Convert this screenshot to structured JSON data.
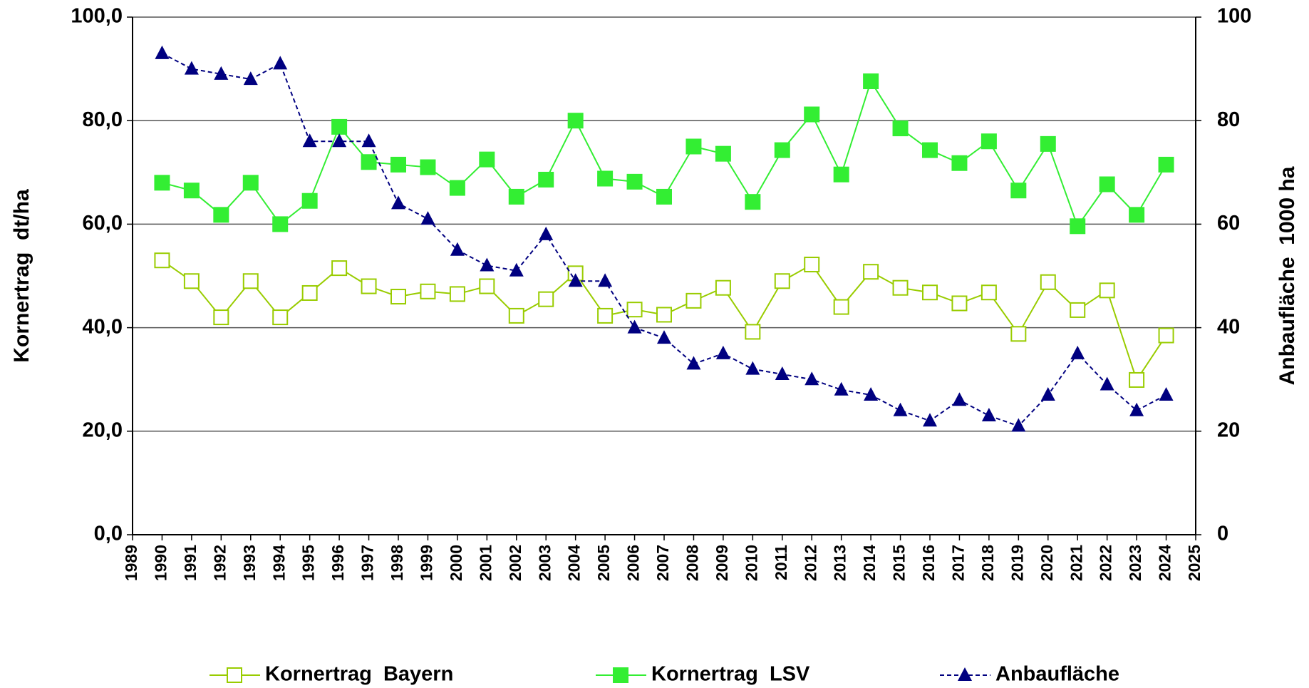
{
  "chart_data": {
    "type": "line",
    "y_label": "Kornertrag  dt/ha",
    "y2_label": "Anbaufläche  1000 ha",
    "x": [
      1990,
      1991,
      1992,
      1993,
      1994,
      1995,
      1996,
      1997,
      1998,
      1999,
      2000,
      2001,
      2002,
      2003,
      2004,
      2005,
      2006,
      2007,
      2008,
      2009,
      2010,
      2011,
      2012,
      2013,
      2014,
      2015,
      2016,
      2017,
      2018,
      2019,
      2020,
      2021,
      2022,
      2023,
      2024
    ],
    "xlim": [
      1989,
      2025
    ],
    "xticks": [
      1989,
      1990,
      1991,
      1992,
      1993,
      1994,
      1995,
      1996,
      1997,
      1998,
      1999,
      2000,
      2001,
      2002,
      2003,
      2004,
      2005,
      2006,
      2007,
      2008,
      2009,
      2010,
      2011,
      2012,
      2013,
      2014,
      2015,
      2016,
      2017,
      2018,
      2019,
      2020,
      2021,
      2022,
      2023,
      2024,
      2025
    ],
    "ylim": [
      0,
      100
    ],
    "yticks": [
      {
        "value": 0,
        "label": "0,0"
      },
      {
        "value": 20,
        "label": "20,0"
      },
      {
        "value": 40,
        "label": "40,0"
      },
      {
        "value": 60,
        "label": "60,0"
      },
      {
        "value": 80,
        "label": "80,0"
      },
      {
        "value": 100,
        "label": "100,0"
      }
    ],
    "y2lim": [
      0,
      100
    ],
    "y2ticks": [
      0,
      20,
      40,
      60,
      80,
      100
    ],
    "grid": true,
    "legend": "bottom",
    "series": [
      {
        "name": "Kornertrag  Bayern",
        "color": "#99cc00",
        "marker": "square-open",
        "values": [
          53,
          49,
          42,
          49,
          42,
          46.7,
          51.5,
          48,
          46,
          47,
          46.5,
          48,
          42.3,
          45.5,
          50.5,
          42.3,
          43.5,
          42.5,
          45.2,
          47.7,
          39.2,
          49,
          52.2,
          44,
          50.8,
          47.7,
          46.8,
          44.7,
          46.8,
          38.8,
          48.8,
          43.4,
          47.2,
          29.9,
          38.5
        ]
      },
      {
        "name": "Kornertrag  LSV",
        "color": "#33ee33",
        "marker": "square",
        "values": [
          68,
          66.5,
          61.8,
          68,
          60,
          64.5,
          78.8,
          72,
          71.5,
          71,
          67,
          72.5,
          65.3,
          68.6,
          80,
          68.8,
          68.2,
          65.3,
          75,
          73.6,
          64.3,
          74.3,
          81.2,
          69.6,
          87.6,
          78.5,
          74.3,
          71.8,
          76,
          66.5,
          75.5,
          59.6,
          67.7,
          61.8,
          71.5
        ]
      },
      {
        "name": "Anbaufläche",
        "color": "#000080",
        "marker": "triangle",
        "dashed": true,
        "axis": "y2",
        "values": [
          93,
          90,
          89,
          88,
          91,
          76,
          76,
          76,
          64,
          61,
          55,
          52,
          51,
          58,
          49,
          49,
          40,
          38,
          33,
          35,
          32,
          31,
          30,
          28,
          27,
          24,
          22,
          26,
          23,
          21,
          27,
          35,
          29,
          24,
          27
        ]
      }
    ]
  }
}
